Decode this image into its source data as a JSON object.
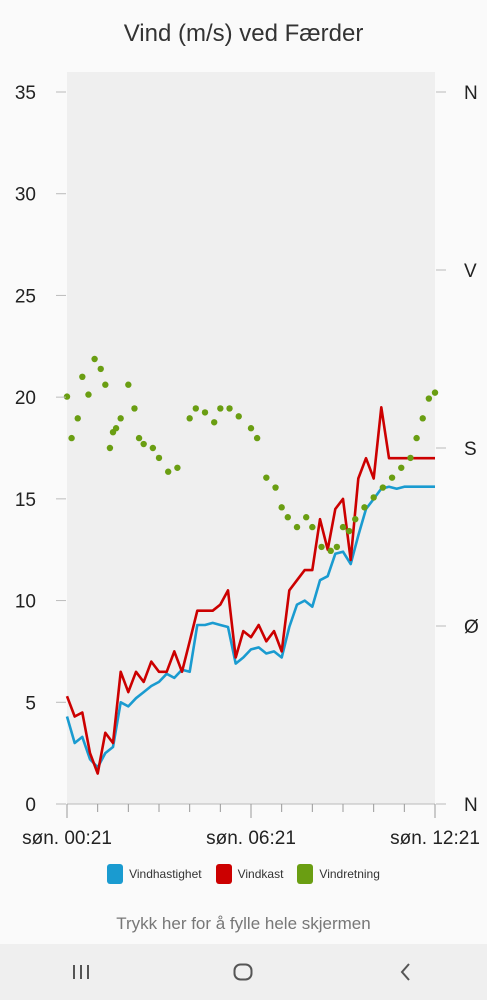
{
  "chart_data": {
    "type": "line",
    "title": "Vind (m/s) ved Færder",
    "x_tick_labels": [
      "søn. 00:21",
      "søn. 06:21",
      "søn. 12:21"
    ],
    "x_hours": [
      0,
      12
    ],
    "y_left": {
      "ticks": [
        "0",
        "5",
        "10",
        "15",
        "20",
        "25",
        "30",
        "35"
      ],
      "ylim": [
        0,
        35
      ]
    },
    "y_right": {
      "ticks": [
        "N",
        "Ø",
        "S",
        "V",
        "N"
      ],
      "ylim": [
        0,
        360
      ]
    },
    "grid": false,
    "legend_position": "bottom",
    "series": [
      {
        "name": "Vindhastighet",
        "color": "#1a9bd0",
        "axis": "left",
        "style": "line",
        "x": [
          0,
          0.25,
          0.5,
          0.75,
          1,
          1.25,
          1.5,
          1.75,
          2,
          2.25,
          2.5,
          2.75,
          3,
          3.25,
          3.5,
          3.75,
          4,
          4.25,
          4.5,
          4.75,
          5,
          5.25,
          5.5,
          5.75,
          6,
          6.25,
          6.5,
          6.75,
          7,
          7.25,
          7.5,
          7.75,
          8,
          8.25,
          8.5,
          8.75,
          9,
          9.25,
          9.5,
          9.75,
          10,
          10.25,
          10.5,
          10.75,
          11,
          11.25,
          11.5,
          11.75,
          12
        ],
        "y": [
          4.3,
          3.0,
          3.3,
          2.2,
          1.8,
          2.5,
          2.8,
          5.0,
          4.8,
          5.2,
          5.5,
          5.8,
          6.0,
          6.4,
          6.2,
          6.6,
          6.5,
          8.8,
          8.8,
          8.9,
          8.8,
          8.7,
          6.9,
          7.2,
          7.6,
          7.7,
          7.4,
          7.5,
          7.2,
          8.7,
          9.8,
          10.0,
          9.7,
          11.0,
          11.2,
          12.3,
          12.4,
          11.8,
          13.2,
          14.5,
          15.0,
          15.5,
          15.6,
          15.5,
          15.6,
          15.6,
          15.6,
          15.6,
          15.6
        ]
      },
      {
        "name": "Vindkast",
        "color": "#cc0000",
        "axis": "left",
        "style": "line",
        "x": [
          0,
          0.25,
          0.5,
          0.75,
          1,
          1.25,
          1.5,
          1.75,
          2,
          2.25,
          2.5,
          2.75,
          3,
          3.25,
          3.5,
          3.75,
          4,
          4.25,
          4.5,
          4.75,
          5,
          5.25,
          5.5,
          5.75,
          6,
          6.25,
          6.5,
          6.75,
          7,
          7.25,
          7.5,
          7.75,
          8,
          8.25,
          8.5,
          8.75,
          9,
          9.25,
          9.5,
          9.75,
          10,
          10.25,
          10.5,
          10.75,
          11,
          11.25,
          11.5,
          11.75,
          12
        ],
        "y": [
          5.3,
          4.3,
          4.5,
          2.5,
          1.5,
          3.5,
          3.0,
          6.5,
          5.5,
          6.5,
          6.0,
          7.0,
          6.5,
          6.5,
          7.5,
          6.5,
          8.0,
          9.5,
          9.5,
          9.5,
          9.8,
          10.5,
          7.2,
          8.5,
          8.2,
          8.8,
          8.0,
          8.5,
          7.5,
          10.5,
          11.0,
          11.5,
          11.5,
          14.0,
          12.5,
          14.5,
          15.0,
          12.0,
          16.0,
          17.0,
          16.0,
          19.5,
          17.0,
          17.0,
          17.0,
          17.0,
          17.0,
          17.0,
          17.0
        ]
      },
      {
        "name": "Vindretning",
        "color": "#6a9e12",
        "axis": "right",
        "style": "dots",
        "x": [
          0,
          0.15,
          0.35,
          0.5,
          0.7,
          0.9,
          1.1,
          1.25,
          1.4,
          1.5,
          1.6,
          1.75,
          2,
          2.2,
          2.35,
          2.5,
          2.8,
          3,
          3.3,
          3.6,
          4,
          4.2,
          4.5,
          4.8,
          5,
          5.3,
          5.6,
          6,
          6.2,
          6.5,
          6.8,
          7,
          7.2,
          7.5,
          7.8,
          8,
          8.3,
          8.6,
          8.8,
          9,
          9.2,
          9.4,
          9.7,
          10,
          10.3,
          10.6,
          10.9,
          11.2,
          11.4,
          11.6,
          11.8,
          12
        ],
        "y": [
          206,
          185,
          195,
          216,
          207,
          225,
          220,
          212,
          180,
          188,
          190,
          195,
          212,
          200,
          185,
          182,
          180,
          175,
          168,
          170,
          195,
          200,
          198,
          193,
          200,
          200,
          196,
          190,
          185,
          165,
          160,
          150,
          145,
          140,
          145,
          140,
          130,
          128,
          130,
          140,
          138,
          144,
          150,
          155,
          160,
          165,
          170,
          175,
          185,
          195,
          205,
          208
        ]
      }
    ]
  },
  "legend": [
    {
      "label": "Vindhastighet",
      "color": "#1a9bd0"
    },
    {
      "label": "Vindkast",
      "color": "#cc0000"
    },
    {
      "label": "Vindretning",
      "color": "#6a9e12"
    }
  ],
  "fill_hint": "Trykk her for å fylle hele skjermen",
  "nav_icons": [
    "recent-apps-icon",
    "home-icon",
    "back-icon"
  ]
}
